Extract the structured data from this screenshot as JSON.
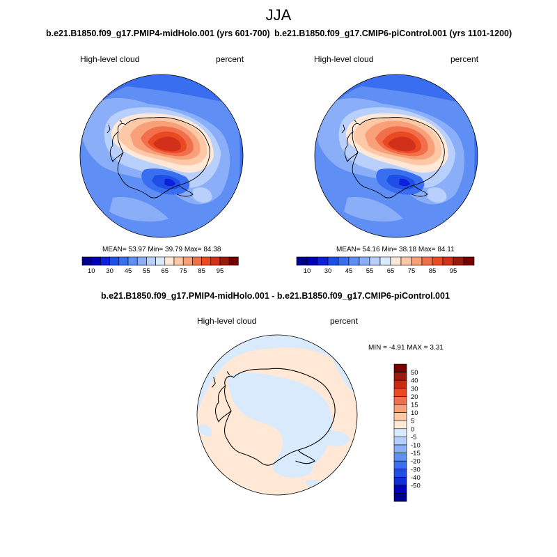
{
  "figure": {
    "title": "JJA"
  },
  "colors": {
    "abs_levels": [
      "#00008e",
      "#0000b4",
      "#0e1fd9",
      "#1f4ee6",
      "#3a6ef0",
      "#5f8ef5",
      "#8aaff8",
      "#b8d0fb",
      "#d9eafd",
      "#ffe8d6",
      "#fcc8a6",
      "#f7a07a",
      "#f26f4c",
      "#ea4a22",
      "#d2301a",
      "#9c1a0b",
      "#760000"
    ],
    "diff_levels": [
      "#00008e",
      "#0000c0",
      "#0d2fd9",
      "#1f4ee6",
      "#3b6ef0",
      "#6090f5",
      "#8cb0f8",
      "#b6cffb",
      "#d9eafd",
      "#ffe8d6",
      "#fcc8a6",
      "#f7a07a",
      "#f26f4c",
      "#ea4a22",
      "#c8290f",
      "#9c1a0b",
      "#760000"
    ]
  },
  "chart_data": [
    {
      "type": "heatmap",
      "projection": "polar-stereographic-south",
      "title": "b.e21.B1850.f09_g17.PMIP4-midHolo.001 (yrs 601-700)",
      "variable": "High-level cloud",
      "units": "percent",
      "stats": {
        "mean": 53.97,
        "min": 39.79,
        "max": 84.38
      },
      "stats_text": "MEAN=  53.97   Min=  39.79   Max=  84.38",
      "colorbar": {
        "orientation": "horizontal",
        "tick_labels": [
          "10",
          "30",
          "45",
          "55",
          "65",
          "75",
          "85",
          "95"
        ]
      }
    },
    {
      "type": "heatmap",
      "projection": "polar-stereographic-south",
      "title": "b.e21.B1850.f09_g17.CMIP6-piControl.001 (yrs 1101-1200)",
      "variable": "High-level cloud",
      "units": "percent",
      "stats": {
        "mean": 54.16,
        "min": 38.18,
        "max": 84.11
      },
      "stats_text": "MEAN=  54.16   Min=  38.18   Max=  84.11",
      "colorbar": {
        "orientation": "horizontal",
        "tick_labels": [
          "10",
          "30",
          "45",
          "55",
          "65",
          "75",
          "85",
          "95"
        ]
      }
    },
    {
      "type": "heatmap",
      "projection": "polar-stereographic-south",
      "title": "b.e21.B1850.f09_g17.PMIP4-midHolo.001 - b.e21.B1850.f09_g17.CMIP6-piControl.001",
      "variable": "High-level cloud",
      "units": "percent",
      "stats": {
        "min": -4.91,
        "max": 3.31
      },
      "stats_text": "MIN =  -4.91  MAX =   3.31",
      "colorbar": {
        "orientation": "vertical",
        "tick_labels": [
          "50",
          "40",
          "30",
          "20",
          "15",
          "10",
          "5",
          "0",
          "-5",
          "-10",
          "-15",
          "-20",
          "-30",
          "-40",
          "-50"
        ]
      }
    }
  ]
}
